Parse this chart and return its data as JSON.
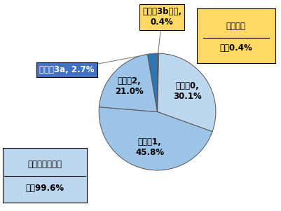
{
  "values": [
    0.4,
    30.1,
    45.8,
    21.0,
    2.7
  ],
  "colors": [
    "#5B9BD5",
    "#BDD7EE",
    "#9DC3E6",
    "#9DC3E6",
    "#2E75B6"
  ],
  "inside_labels": [
    "",
    "レベル0,\n30.1%",
    "レベル1,\n45.8%",
    "レベル2,\n21.0%",
    ""
  ],
  "label_r": [
    0.0,
    0.62,
    0.62,
    0.65,
    0.0
  ],
  "box_3b_text": "レベル3b以上,\n0.4%",
  "box_3b_color": "#FFD966",
  "box_3a_text": "レベル3a, 2.7%",
  "box_3a_color": "#4472C4",
  "box_hiyari_line1": "ヒヤリ・ハット",
  "box_hiyari_line2": "計　99.6%",
  "box_hiyari_color": "#BDD7EE",
  "box_medical_line1": "医療事故",
  "box_medical_line2": "計　0.4%",
  "box_medical_color": "#FFD966",
  "background_color": "#FFFFFF",
  "font_size": 8.5,
  "edge_color": "#555555"
}
